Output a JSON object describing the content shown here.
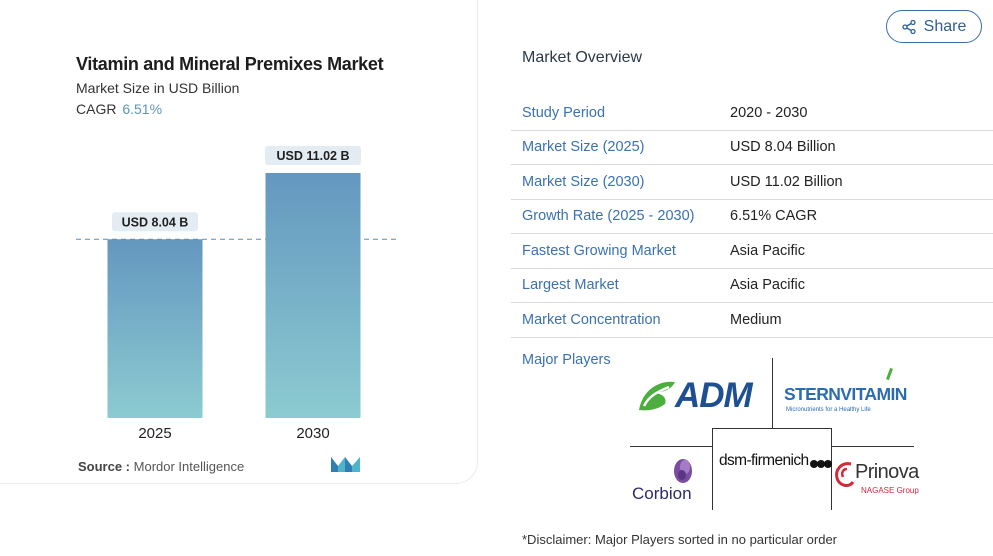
{
  "card": {
    "title": "Vitamin and Mineral Premixes Market",
    "subtitle": "Market Size in USD Billion",
    "cagr_label": "CAGR",
    "cagr_value": "6.51%",
    "source_label": "Source :",
    "source_value": "Mordor Intelligence"
  },
  "chart_data": {
    "type": "bar",
    "title": "Vitamin and Mineral Premixes Market",
    "subtitle": "Market Size in USD Billion",
    "categories": [
      "2025",
      "2030"
    ],
    "values": [
      8.04,
      11.02
    ],
    "data_labels": [
      "USD 8.04 B",
      "USD 11.02 B"
    ],
    "xlabel": "",
    "ylabel": "",
    "ylim": [
      0,
      11.02
    ],
    "grid": false,
    "reference_line": 8.04,
    "colors": {
      "bar_top": "#6497bf",
      "bar_bottom": "#8ccbd1",
      "label_bg": "#e3ecf3",
      "dashed": "#5b8db5"
    }
  },
  "share": {
    "label": "Share",
    "icon": "share-icon"
  },
  "overview": {
    "title": "Market Overview",
    "rows": [
      {
        "key": "Study Period",
        "value": "2020 - 2030"
      },
      {
        "key": "Market Size (2025)",
        "value": "USD 8.04 Billion"
      },
      {
        "key": "Market Size (2030)",
        "value": "USD 11.02 Billion"
      },
      {
        "key": "Growth Rate (2025 - 2030)",
        "value": "6.51% CAGR"
      },
      {
        "key": "Fastest Growing Market",
        "value": "Asia Pacific"
      },
      {
        "key": "Largest Market",
        "value": "Asia Pacific"
      },
      {
        "key": "Market Concentration",
        "value": "Medium"
      }
    ],
    "major_players_label": "Major Players",
    "players": {
      "adm": "ADM",
      "stern": "STERNVITAMIN",
      "stern_tagline": "Micronutrients for a Healthy Life",
      "dsm": "dsm-firmenich",
      "corbion": "Corbion",
      "prinova": "Prinova",
      "prinova_tagline": "NAGASE Group"
    },
    "disclaimer": "*Disclaimer: Major Players sorted in no particular order"
  },
  "colors": {
    "accent": "#3a72b0",
    "share_border": "#3a6ea5"
  }
}
